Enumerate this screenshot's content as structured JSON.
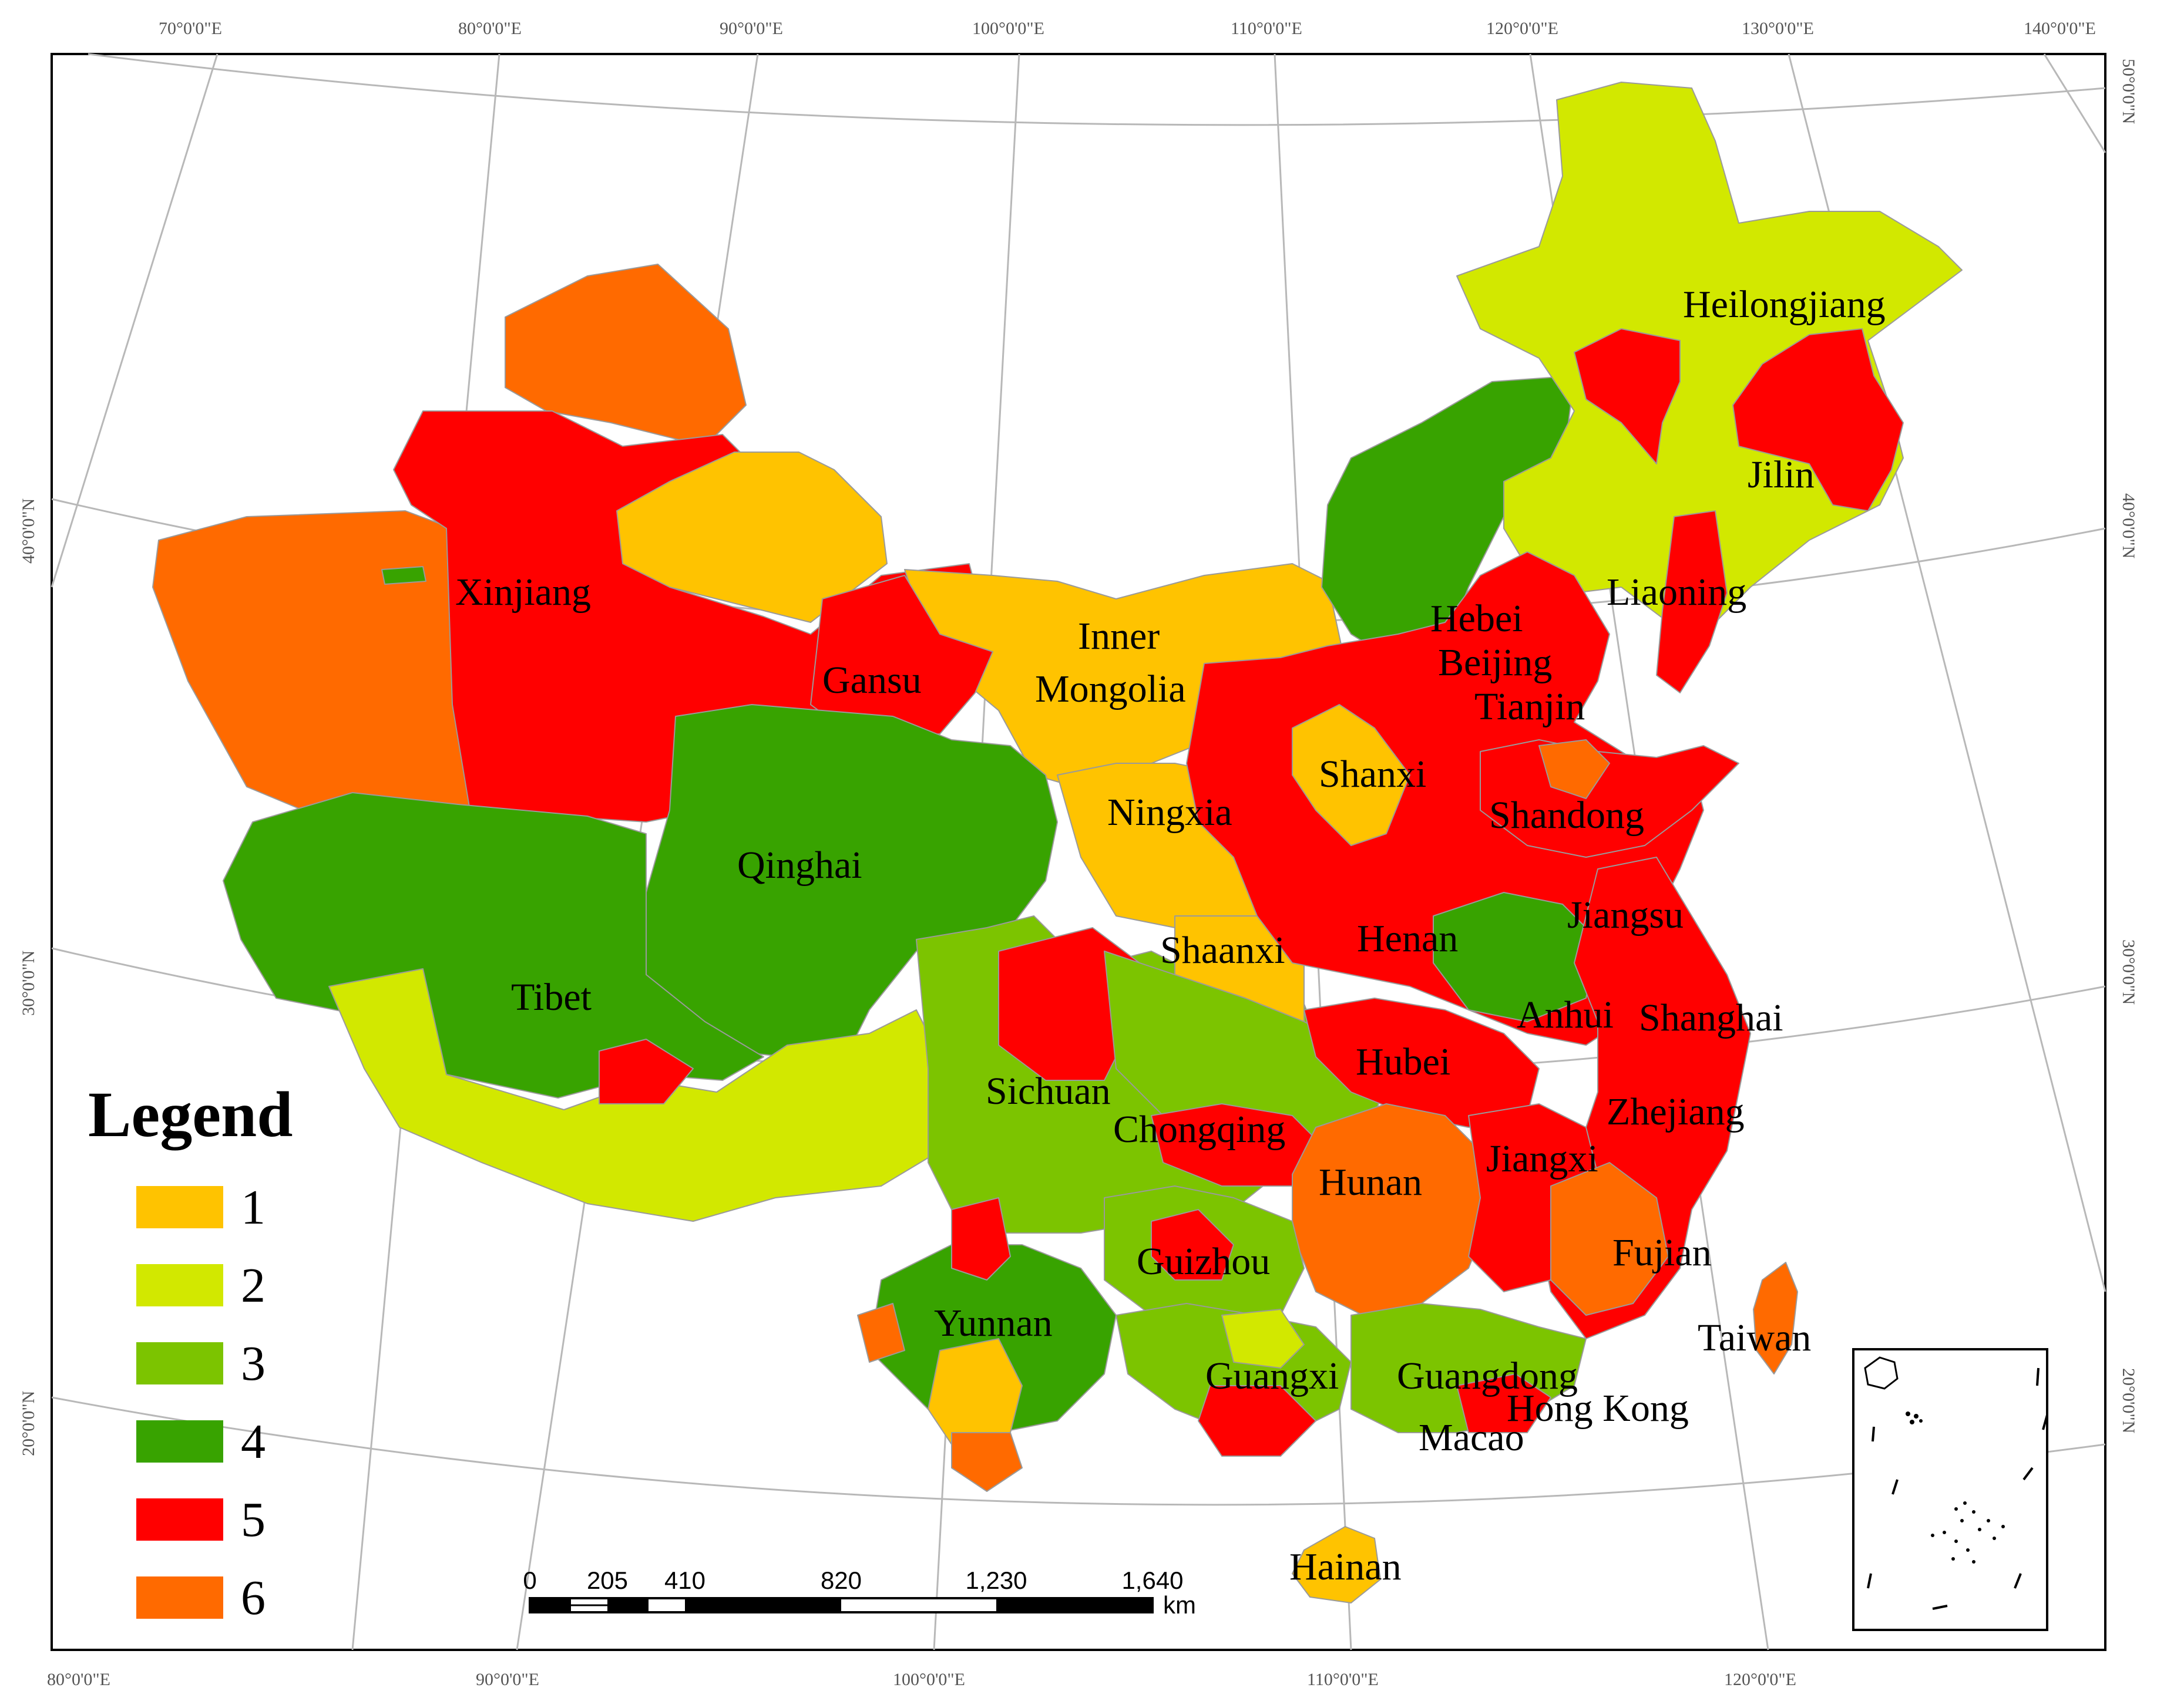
{
  "top_ticks": [
    "70°0'0\"E",
    "80°0'0\"E",
    "90°0'0\"E",
    "100°0'0\"E",
    "110°0'0\"E",
    "120°0'0\"E",
    "130°0'0\"E",
    "140°0'0\"E"
  ],
  "bottom_ticks": [
    "80°0'0\"E",
    "90°0'0\"E",
    "100°0'0\"E",
    "110°0'0\"E",
    "120°0'0\"E"
  ],
  "left_ticks": [
    "40°0'0\"N",
    "30°0'0\"N",
    "20°0'0\"N"
  ],
  "right_ticks": [
    "50°0'0\"N",
    "40°0'0\"N",
    "30°0'0\"N",
    "20°0'0\"N"
  ],
  "province_labels": [
    "Heilongjiang",
    "Jilin",
    "Liaoning",
    "Xinjiang",
    "Hebei",
    "Beijing",
    "Tianjin",
    "Inner",
    "Mongolia",
    "Gansu",
    "Shanxi",
    "Shandong",
    "Ningxia",
    "Qinghai",
    "Jiangsu",
    "Henan",
    "Shaanxi",
    "Tibet",
    "Anhui",
    "Shanghai",
    "Hubei",
    "Sichuan",
    "Zhejiang",
    "Chongqing",
    "Jiangxi",
    "Hunan",
    "Fujian",
    "Guizhou",
    "Taiwan",
    "Yunnan",
    "Guangxi",
    "Guangdong",
    "Hong Kong",
    "Macao",
    "Hainan"
  ],
  "legend": {
    "title": "Legend",
    "items": [
      {
        "label": "1",
        "color": "#FFC300"
      },
      {
        "label": "2",
        "color": "#D2E800"
      },
      {
        "label": "3",
        "color": "#7CC400"
      },
      {
        "label": "4",
        "color": "#38A300"
      },
      {
        "label": "5",
        "color": "#FF0000"
      },
      {
        "label": "6",
        "color": "#FF6A00"
      }
    ]
  },
  "scale_bar": {
    "labels": [
      "0",
      "205",
      "410",
      "820",
      "1,230",
      "1,640"
    ],
    "unit": "km"
  }
}
